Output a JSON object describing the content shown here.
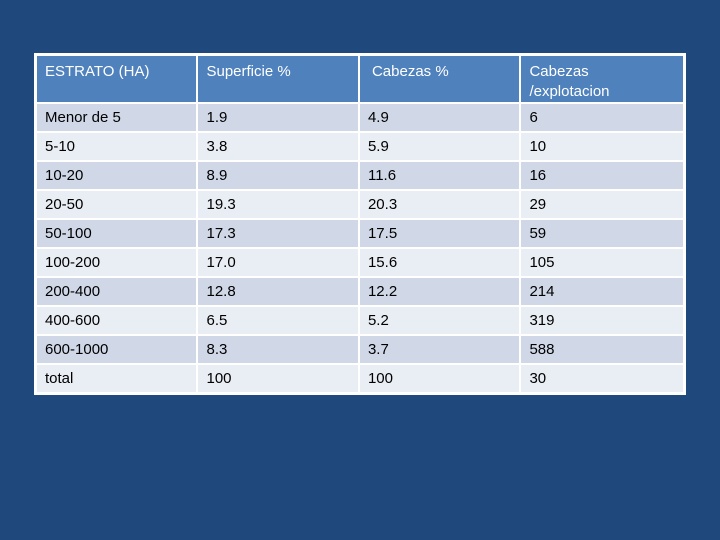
{
  "table": {
    "headers": [
      "ESTRATO (HA)",
      "Superficie %",
      "Cabezas %",
      "Cabezas\n/explotacion"
    ],
    "header_lines": [
      "Cabezas",
      "/explotacion"
    ],
    "rows": [
      [
        "Menor de 5",
        "1.9",
        "4.9",
        "6"
      ],
      [
        "5-10",
        "3.8",
        "5.9",
        "10"
      ],
      [
        "10-20",
        "8.9",
        "11.6",
        "16"
      ],
      [
        "20-50",
        "19.3",
        "20.3",
        "29"
      ],
      [
        "50-100",
        "17.3",
        "17.5",
        "59"
      ],
      [
        "100-200",
        "17.0",
        "15.6",
        "105"
      ],
      [
        "200-400",
        "12.8",
        "12.2",
        "214"
      ],
      [
        "400-600",
        "6.5",
        "5.2",
        "319"
      ],
      [
        "600-1000",
        "8.3",
        "3.7",
        "588"
      ],
      [
        "total",
        "100",
        "100",
        "30"
      ]
    ]
  },
  "colors": {
    "background": "#1f497d",
    "header": "#4f81bd",
    "row_odd": "#d0d8e8",
    "row_even": "#e9edf4"
  }
}
